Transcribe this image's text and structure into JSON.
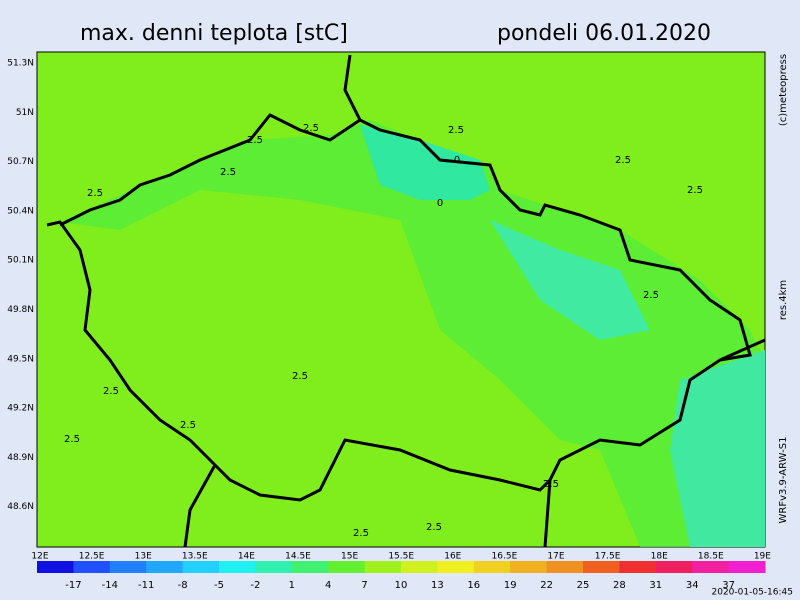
{
  "header": {
    "title": "max. denni teplota [stC]",
    "date": "pondeli 06.01.2020"
  },
  "side_labels": {
    "copyright": "(c)meteopress",
    "resolution": "res.4km",
    "model": "WRFv3.9-ARW-S1"
  },
  "lat_labels": [
    "51.3N",
    "51N",
    "50.7N",
    "50.4N",
    "50.1N",
    "49.8N",
    "49.5N",
    "49.2N",
    "48.9N",
    "48.6N"
  ],
  "lon_labels": [
    "12E",
    "12.5E",
    "13E",
    "13.5E",
    "14E",
    "14.5E",
    "15E",
    "15.5E",
    "16E",
    "16.5E",
    "17E",
    "17.5E",
    "18E",
    "18.5E",
    "19E"
  ],
  "colorbar": {
    "labels": [
      -17,
      -14,
      -11,
      -8,
      -5,
      -2,
      1,
      4,
      7,
      10,
      13,
      16,
      19,
      22,
      25,
      28,
      31,
      34,
      37
    ],
    "colors": [
      "#1010e0",
      "#2050ff",
      "#2080ff",
      "#20a8ff",
      "#20d0ff",
      "#20f0f0",
      "#30f0b0",
      "#40f070",
      "#60f030",
      "#a0f020",
      "#d0f020",
      "#f0f020",
      "#f0d020",
      "#f0b020",
      "#f09020",
      "#f06020",
      "#f03030",
      "#f02060",
      "#f020a0",
      "#f020d0"
    ]
  },
  "contour_labels": [
    "2.5",
    "2.5",
    "2.5",
    "2.5",
    "2.5",
    "2.5",
    "2.5",
    "2.5",
    "2.5",
    "2.5",
    "2.5",
    "2.5",
    "2.5",
    "2.5",
    "2.5",
    "0",
    "0"
  ],
  "timestamp": "2020-01-05-16:45"
}
